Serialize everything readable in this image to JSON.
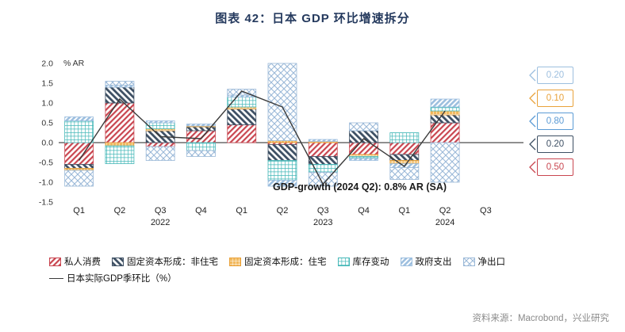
{
  "title": "图表 42：日本 GDP 环比增速拆分",
  "source": "资料来源：Macrobond，兴业研究",
  "chart_data": {
    "type": "bar",
    "stacked": true,
    "y_unit_label": "% AR",
    "ylim": [
      -1.5,
      2.0
    ],
    "ytick_step": 0.5,
    "x_quarter_labels": [
      "Q1",
      "Q2",
      "Q3",
      "Q4",
      "Q1",
      "Q2",
      "Q3",
      "Q4",
      "Q1",
      "Q2",
      "Q3"
    ],
    "year_labels": [
      {
        "text": "2022",
        "slot": 2
      },
      {
        "text": "2023",
        "slot": 6
      },
      {
        "text": "2024",
        "slot": 9
      }
    ],
    "series": [
      {
        "name": "私人消费",
        "color": "#c94650",
        "pattern": "diag-red",
        "values": [
          -0.55,
          1.0,
          -0.1,
          0.3,
          0.45,
          -0.05,
          -0.35,
          -0.3,
          -0.3,
          0.5,
          null
        ]
      },
      {
        "name": "固定资本形成：非住宅",
        "color": "#3d4f63",
        "pattern": "diag-navy",
        "values": [
          -0.1,
          0.4,
          0.3,
          0.1,
          0.4,
          -0.4,
          -0.2,
          0.3,
          -0.15,
          0.2,
          null
        ]
      },
      {
        "name": "固定资本形成：住宅",
        "color": "#e9a23b",
        "pattern": "grid-orange",
        "values": [
          -0.05,
          -0.08,
          0.05,
          0.02,
          0.05,
          0.05,
          0.03,
          -0.05,
          -0.08,
          0.1,
          null
        ]
      },
      {
        "name": "库存变动",
        "color": "#45b8b8",
        "pattern": "grid-teal",
        "values": [
          0.55,
          -0.45,
          0.15,
          -0.2,
          0.25,
          -0.5,
          -0.2,
          -0.05,
          0.25,
          0.1,
          null
        ]
      },
      {
        "name": "政府支出",
        "color": "#9dbfdf",
        "pattern": "diag-lightblue",
        "values": [
          0.1,
          0.05,
          0.05,
          0.05,
          0.05,
          -0.15,
          0.05,
          -0.05,
          -0.1,
          0.2,
          null
        ]
      },
      {
        "name": "净出口",
        "color": "#9bb9d8",
        "pattern": "cross-lightblue",
        "values": [
          -0.4,
          0.1,
          -0.35,
          -0.15,
          0.15,
          1.95,
          -0.35,
          0.2,
          -0.3,
          -1.0,
          null
        ]
      }
    ],
    "line_series": {
      "name": "日本实际GDP季环比（%）",
      "color": "#3a3a3a",
      "values": [
        -0.45,
        1.1,
        0.15,
        0.1,
        1.3,
        0.9,
        -1.05,
        0.1,
        -0.6,
        0.8,
        null
      ]
    },
    "annotation": "GDP-growth (2024 Q2): 0.8% AR (SA)",
    "callouts": [
      {
        "value": "0.20",
        "color": "#9dbfdf"
      },
      {
        "value": "0.10",
        "color": "#e9a23b"
      },
      {
        "value": "0.80",
        "color": "#5b9bd5"
      },
      {
        "value": "0.20",
        "color": "#3d4f63"
      },
      {
        "value": "0.50",
        "color": "#c94650"
      }
    ]
  }
}
